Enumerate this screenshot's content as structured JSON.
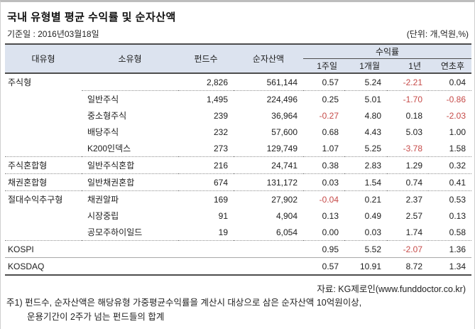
{
  "title": "국내 유형별 평균 수익률 및 순자산액",
  "meta": {
    "base_date": "기준일 : 2016년03월18일",
    "unit": "(단위: 개,억원,%)"
  },
  "colors": {
    "negative": "#c64a48",
    "header_bg": "#dce3ef",
    "rule_dark": "#4d4d4d"
  },
  "chart_data": {
    "type": "table",
    "title": "국내 유형별 평균 수익률 및 순자산액",
    "columns": [
      "대유형",
      "소유형",
      "펀드수",
      "순자산액",
      "1주일",
      "1개월",
      "1년",
      "연초후"
    ],
    "returns_group_label": "수익률",
    "layout": {
      "returns_group_span": [
        "1주일",
        "1개월",
        "1년",
        "연초후"
      ],
      "negative_values_red": true
    },
    "rows": [
      {
        "cells": [
          "주식형",
          "",
          "2,826",
          "561,144",
          "0.57",
          "5.24",
          "-2.21",
          "0.04"
        ],
        "sep": "partial"
      },
      {
        "cells": [
          "",
          "일반주식",
          "1,495",
          "224,496",
          "0.25",
          "5.01",
          "-1.70",
          "-0.86"
        ],
        "sep": "none"
      },
      {
        "cells": [
          "",
          "중소형주식",
          "239",
          "36,964",
          "-0.27",
          "4.80",
          "0.18",
          "-2.03"
        ],
        "sep": "none"
      },
      {
        "cells": [
          "",
          "배당주식",
          "232",
          "57,600",
          "0.68",
          "4.43",
          "5.03",
          "1.00"
        ],
        "sep": "none"
      },
      {
        "cells": [
          "",
          "K200인덱스",
          "273",
          "129,749",
          "1.07",
          "5.25",
          "-3.78",
          "1.58"
        ],
        "sep": "dotted"
      },
      {
        "cells": [
          "주식혼합형",
          "일반주식혼합",
          "216",
          "24,741",
          "0.38",
          "2.83",
          "1.29",
          "0.32"
        ],
        "sep": "dotted"
      },
      {
        "cells": [
          "채권혼합형",
          "일반채권혼합",
          "674",
          "131,172",
          "0.03",
          "1.54",
          "0.74",
          "0.41"
        ],
        "sep": "dotted"
      },
      {
        "cells": [
          "절대수익추구형",
          "채권알파",
          "169",
          "27,902",
          "-0.04",
          "0.21",
          "2.37",
          "0.53"
        ],
        "sep": "none"
      },
      {
        "cells": [
          "",
          "시장중립",
          "91",
          "4,904",
          "0.13",
          "0.49",
          "2.57",
          "0.13"
        ],
        "sep": "none"
      },
      {
        "cells": [
          "",
          "공모주하이일드",
          "19",
          "6,054",
          "0.00",
          "0.03",
          "1.74",
          "0.58"
        ],
        "sep": "dotted"
      },
      {
        "cells": [
          "KOSPI",
          "",
          "",
          "",
          "0.95",
          "5.52",
          "-2.07",
          "1.36"
        ],
        "sep": "solid"
      },
      {
        "cells": [
          "KOSDAQ",
          "",
          "",
          "",
          "0.57",
          "10.91",
          "8.72",
          "1.34"
        ],
        "sep": "none"
      }
    ]
  },
  "footer": {
    "source": "자료: KG제로인(www.funddoctor.co.kr)",
    "note1": "주1) 펀드수, 순자산액은 해당유형 가중평균수익률을 계산시 대상으로 삼은 순자산액 10억원이상,",
    "note2": "운용기간이 2주가 넘는 펀드들의 합계"
  }
}
